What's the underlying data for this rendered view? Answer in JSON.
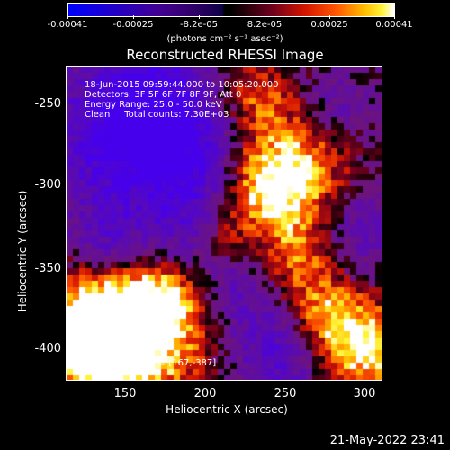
{
  "colorbar": {
    "ticks": [
      "-0.00041",
      "-0.00025",
      "-8.2e-05",
      "8.2e-05",
      "0.00025",
      "0.00041"
    ],
    "unit": "(photons cm⁻² s⁻¹ asec⁻²)"
  },
  "image": {
    "title": "Reconstructed RHESSI Image",
    "annotation_lines": [
      "18-Jun-2015 09:59:44.000 to 10:05:20.000",
      "Detectors: 3F 5F 6F 7F 8F 9F, Att 0",
      "Energy Range: 25.0 - 50.0 keV",
      "Clean     Total counts: 7.30E+03"
    ],
    "peak_label": "Position of Peak = [167,-387]",
    "y_axis": {
      "label": "Heliocentric Y (arcsec)",
      "ticks": [
        "-250",
        "-300",
        "-350",
        "-400"
      ]
    },
    "x_axis": {
      "label": "Heliocentric X (arcsec)",
      "ticks": [
        "150",
        "200",
        "250",
        "300"
      ]
    }
  },
  "timestamp": "21-May-2022 23:41",
  "colors": {
    "negative": "#0000ff",
    "zero": "#000000",
    "positive": "#ffff00"
  }
}
